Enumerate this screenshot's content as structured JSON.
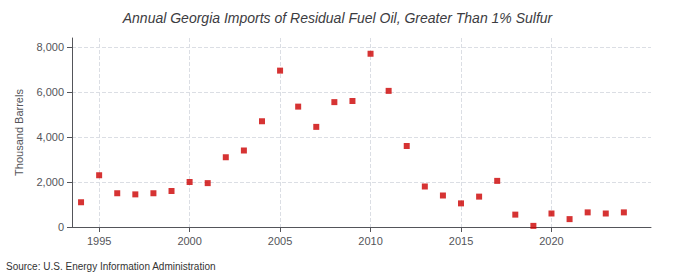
{
  "chart_data": {
    "type": "scatter",
    "title": "Annual Georgia Imports of Residual Fuel Oil, Greater Than 1% Sulfur",
    "ylabel": "Thousand Barrels",
    "annotation": "Source: U.S. Energy Information Administration",
    "x": [
      1994,
      1995,
      1996,
      1997,
      1998,
      1999,
      2000,
      2001,
      2002,
      2003,
      2004,
      2005,
      2006,
      2007,
      2008,
      2009,
      2010,
      2011,
      2012,
      2013,
      2014,
      2015,
      2016,
      2017,
      2018,
      2019,
      2020,
      2021,
      2022,
      2023,
      2024
    ],
    "values": [
      1100,
      2300,
      1500,
      1450,
      1500,
      1600,
      2000,
      1950,
      3100,
      3400,
      4700,
      6950,
      5350,
      4450,
      5550,
      5600,
      7700,
      6050,
      3600,
      1800,
      1400,
      1050,
      1350,
      2050,
      550,
      50,
      600,
      350,
      650,
      600,
      650
    ],
    "color": "#cc0000",
    "marker": "square",
    "xlim": [
      1993.5,
      2025.5
    ],
    "xticks": [
      1995,
      2000,
      2005,
      2010,
      2015,
      2020
    ],
    "ylim": [
      0,
      8400
    ],
    "yticks": [
      0,
      {
        "value": 2000,
        "label": "2,000"
      },
      {
        "value": 4000,
        "label": "4,000"
      },
      {
        "value": 6000,
        "label": "6,000"
      },
      {
        "value": 8000,
        "label": "8,000"
      }
    ],
    "grid": true
  }
}
